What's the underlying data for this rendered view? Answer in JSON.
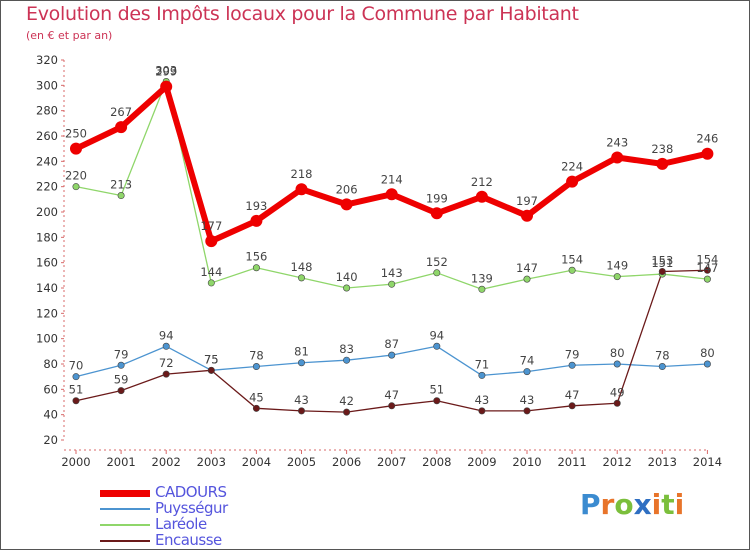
{
  "header": {
    "title": "Evolution des Impôts locaux pour la Commune par Habitant",
    "subtitle": "(en € et par an)"
  },
  "logo": {
    "text": "Proxiti",
    "letters": [
      {
        "ch": "P",
        "color": "#3b8bd0"
      },
      {
        "ch": "r",
        "color": "#e8742a"
      },
      {
        "ch": "o",
        "color": "#7bbf3c"
      },
      {
        "ch": "x",
        "color": "#2f6fc2"
      },
      {
        "ch": "i",
        "color": "#e8742a"
      },
      {
        "ch": "t",
        "color": "#7bbf3c"
      },
      {
        "ch": "i",
        "color": "#e8742a"
      }
    ]
  },
  "chart_data": {
    "type": "line",
    "title": "Evolution des Impôts locaux pour la Commune par Habitant",
    "subtitle": "(en € et par an)",
    "x": [
      "2000",
      "2001",
      "2002",
      "2003",
      "2004",
      "2005",
      "2006",
      "2007",
      "2008",
      "2009",
      "2010",
      "2011",
      "2012",
      "2013",
      "2014"
    ],
    "ylim": [
      20,
      320
    ],
    "yticks": [
      20,
      40,
      60,
      80,
      100,
      120,
      140,
      160,
      180,
      200,
      220,
      240,
      260,
      280,
      300,
      320
    ],
    "grid": false,
    "legend_position": "bottom-left",
    "series": [
      {
        "name": "CADOURS",
        "color": "#ee0000",
        "width": 6,
        "values": [
          250,
          267,
          299,
          177,
          193,
          218,
          206,
          214,
          199,
          212,
          197,
          224,
          243,
          238,
          246
        ],
        "labels": [
          "250",
          "267",
          "299",
          "177",
          "193",
          "218",
          "206",
          "214",
          "199",
          "212",
          "197",
          "224",
          "243",
          "238",
          "246"
        ]
      },
      {
        "name": "Puysségur",
        "color": "#4c94d0",
        "width": 1.3,
        "values": [
          70,
          79,
          94,
          75,
          78,
          81,
          83,
          87,
          94,
          71,
          74,
          79,
          80,
          78,
          80
        ],
        "labels": [
          "70",
          "79",
          "94",
          "75",
          "78",
          "81",
          "83",
          "87",
          "94",
          "71",
          "74",
          "79",
          "80",
          "78",
          "80"
        ]
      },
      {
        "name": "Laréole",
        "color": "#8fd66a",
        "width": 1.3,
        "values": [
          220,
          213,
          303,
          144,
          156,
          148,
          140,
          143,
          152,
          139,
          147,
          154,
          149,
          151,
          147
        ],
        "labels": [
          "220",
          "213",
          "303",
          "144",
          "156",
          "148",
          "140",
          "143",
          "152",
          "139",
          "147",
          "154",
          "149",
          "151",
          "147"
        ]
      },
      {
        "name": "Encausse",
        "color": "#6b1a1a",
        "width": 1.3,
        "values": [
          51,
          59,
          72,
          75,
          45,
          43,
          42,
          47,
          51,
          43,
          43,
          47,
          49,
          153,
          154
        ],
        "labels": [
          "51",
          "59",
          "72",
          "75",
          "45",
          "43",
          "42",
          "47",
          "51",
          "43",
          "43",
          "47",
          "49",
          "153",
          "154"
        ]
      }
    ]
  }
}
